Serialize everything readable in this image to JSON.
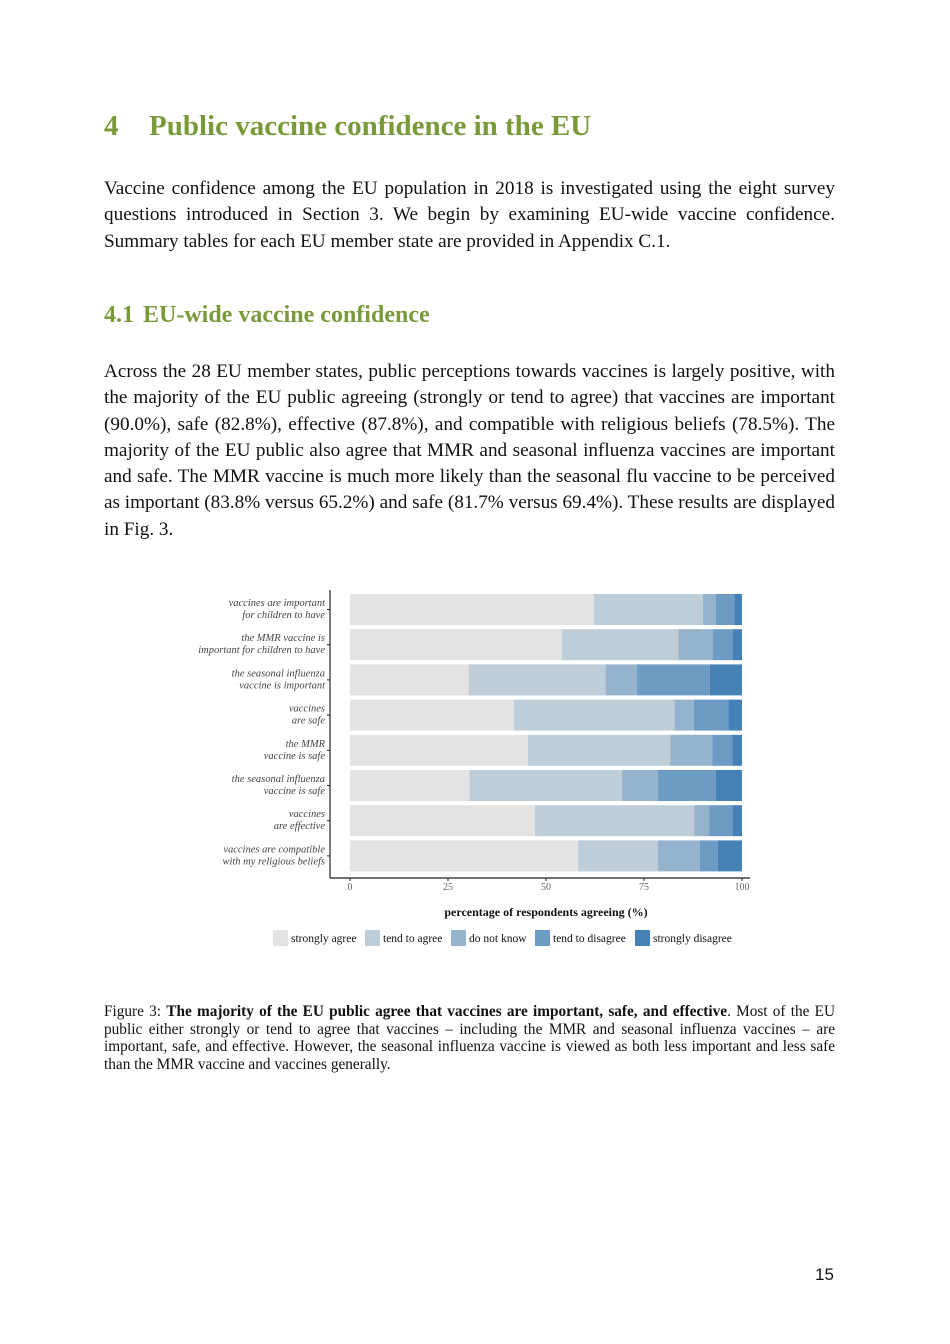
{
  "section": {
    "number": "4",
    "title": "Public vaccine confidence in the EU"
  },
  "intro_paragraph": "Vaccine confidence among the EU population in 2018 is investigated using the eight survey questions introduced in Section 3. We begin by examining EU-wide vaccine confidence. Summary tables for each EU member state are provided in Appendix C.1.",
  "subsection": {
    "number": "4.1",
    "title": "EU-wide vaccine confidence"
  },
  "subsection_paragraph": "Across the 28 EU member states, public perceptions towards vaccines is largely positive, with the majority of the EU public agreeing (strongly or tend to agree) that vaccines are important (90.0%), safe (82.8%), effective (87.8%), and compatible with religious beliefs (78.5%). The majority of the EU public also agree that MMR and seasonal influenza vaccines are important and safe. The MMR vaccine is much more likely than the seasonal flu vaccine to be perceived as important (83.8% versus 65.2%) and safe (81.7% versus 69.4%). These results are displayed in Fig. 3.",
  "chart_data": {
    "type": "bar",
    "orientation": "horizontal",
    "stacked": true,
    "categories": [
      [
        "vaccines are important",
        "for children to have"
      ],
      [
        "the MMR vaccine is",
        "important for children to have"
      ],
      [
        "the seasonal influenza",
        "vaccine is important"
      ],
      [
        "vaccines",
        "are safe"
      ],
      [
        "the MMR",
        "vaccine is safe"
      ],
      [
        "the seasonal influenza",
        "vaccine is safe"
      ],
      [
        "vaccines",
        "are effective"
      ],
      [
        "vaccines are compatible",
        "with my religious beliefs"
      ]
    ],
    "series": [
      {
        "name": "strongly agree",
        "color": "#e3e3e3",
        "values": [
          62.2,
          54.0,
          30.3,
          41.8,
          45.4,
          30.5,
          47.2,
          58.2
        ]
      },
      {
        "name": "tend to agree",
        "color": "#bfcdd9",
        "values": [
          27.8,
          29.8,
          34.9,
          41.0,
          36.3,
          38.9,
          40.6,
          20.3
        ]
      },
      {
        "name": "do not know",
        "color": "#95b3cd",
        "values": [
          3.3,
          8.7,
          8.0,
          4.9,
          10.7,
          9.1,
          3.9,
          10.7
        ]
      },
      {
        "name": "tend to disagree",
        "color": "#6d9bc3",
        "values": [
          4.8,
          5.1,
          18.6,
          8.8,
          5.1,
          14.8,
          5.9,
          4.6
        ]
      },
      {
        "name": "strongly disagree",
        "color": "#4581b4",
        "values": [
          1.9,
          2.4,
          8.2,
          3.5,
          2.5,
          6.7,
          2.4,
          6.2
        ]
      }
    ],
    "xlabel": "percentage of respondents agreeing (%)",
    "xlim": [
      0,
      100
    ],
    "xticks": [
      "0",
      "25",
      "50",
      "75",
      "100"
    ],
    "legend_position": "bottom",
    "grid": false
  },
  "caption": {
    "label": "Figure 3:",
    "bold": "The majority of the EU public agree that vaccines are important, safe, and effective",
    "rest": ". Most of the EU public either strongly or tend to agree that vaccines – including the MMR and seasonal influenza vaccines – are important, safe, and effective. However, the seasonal influenza vaccine is viewed as both less important and less safe than the MMR vaccine and vaccines generally."
  },
  "page_number": "15"
}
